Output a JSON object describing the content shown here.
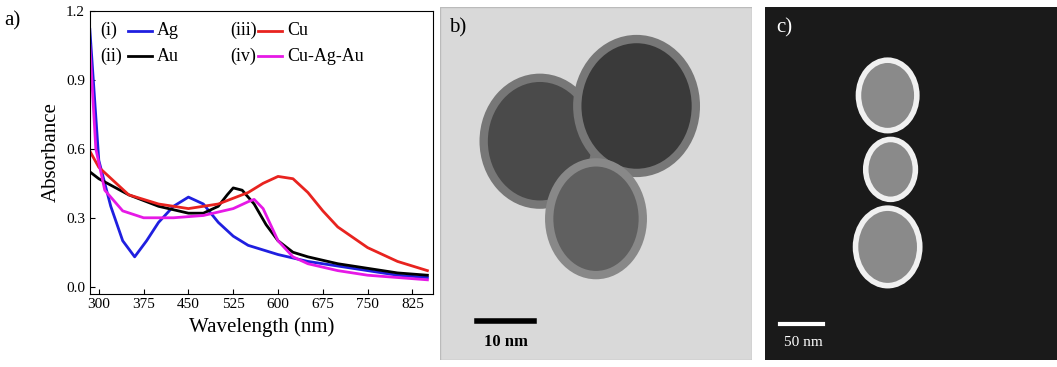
{
  "chart_data": {
    "type": "line",
    "panel_label": "a)",
    "x_label": "Wavelength (nm)",
    "y_label": "Absorbance",
    "xlim": [
      285,
      860
    ],
    "xticks": [
      300,
      375,
      450,
      525,
      600,
      675,
      750,
      825
    ],
    "ylim": [
      -0.03,
      1.2
    ],
    "yticks": [
      0.0,
      0.3,
      0.6,
      0.9,
      1.2
    ],
    "series": [
      {
        "tag": "(i)",
        "name": "Ag",
        "color": "#1f1fe0",
        "x": [
          285,
          300,
          320,
          340,
          360,
          380,
          400,
          425,
          450,
          475,
          500,
          525,
          550,
          600,
          650,
          700,
          750,
          800,
          850
        ],
        "values": [
          1.12,
          0.55,
          0.35,
          0.2,
          0.13,
          0.2,
          0.28,
          0.35,
          0.39,
          0.36,
          0.28,
          0.22,
          0.18,
          0.14,
          0.11,
          0.09,
          0.07,
          0.05,
          0.04
        ]
      },
      {
        "tag": "(ii)",
        "name": "Au",
        "color": "#000000",
        "x": [
          285,
          300,
          350,
          400,
          450,
          475,
          500,
          515,
          525,
          540,
          560,
          580,
          600,
          625,
          650,
          700,
          750,
          800,
          850
        ],
        "values": [
          0.5,
          0.47,
          0.4,
          0.35,
          0.32,
          0.32,
          0.35,
          0.4,
          0.43,
          0.42,
          0.36,
          0.27,
          0.2,
          0.15,
          0.13,
          0.1,
          0.08,
          0.06,
          0.05
        ]
      },
      {
        "tag": "(iii)",
        "name": "Cu",
        "color": "#e8231f",
        "x": [
          285,
          300,
          350,
          400,
          450,
          500,
          550,
          575,
          600,
          625,
          650,
          675,
          700,
          750,
          800,
          850
        ],
        "values": [
          0.59,
          0.52,
          0.4,
          0.36,
          0.34,
          0.36,
          0.41,
          0.45,
          0.48,
          0.47,
          0.41,
          0.33,
          0.26,
          0.17,
          0.11,
          0.07
        ]
      },
      {
        "tag": "(iv)",
        "name": "Cu-Ag-Au",
        "color": "#e619e6",
        "x": [
          285,
          295,
          310,
          340,
          375,
          425,
          475,
          525,
          550,
          560,
          575,
          600,
          625,
          650,
          700,
          750,
          800,
          850
        ],
        "values": [
          1.05,
          0.6,
          0.42,
          0.33,
          0.3,
          0.3,
          0.31,
          0.34,
          0.37,
          0.38,
          0.34,
          0.2,
          0.13,
          0.1,
          0.07,
          0.05,
          0.04,
          0.03
        ]
      }
    ]
  },
  "images": [
    {
      "panel_label": "b)",
      "scale_bar": "10 nm"
    },
    {
      "panel_label": "c)",
      "scale_bar": "50 nm"
    }
  ]
}
